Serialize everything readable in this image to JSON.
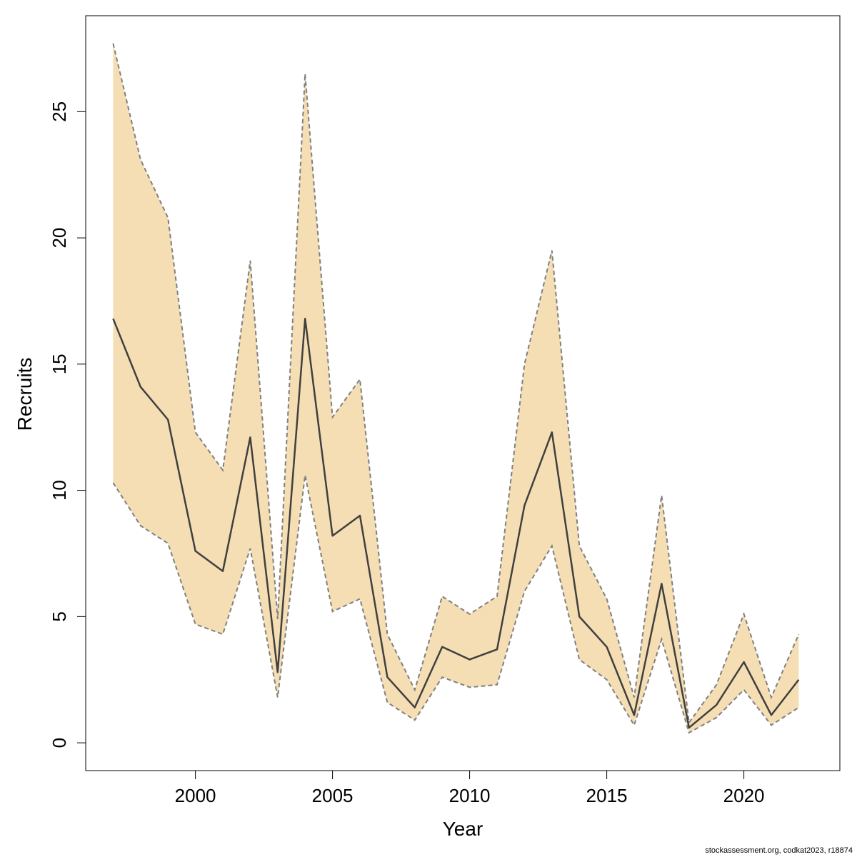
{
  "footer": "stockassessment.org, codkat2023, r18874",
  "chart_data": {
    "type": "line",
    "title": "",
    "xlabel": "Year",
    "ylabel": "Recruits",
    "xlim": [
      1996,
      2023.5
    ],
    "ylim": [
      -1.1,
      28.8
    ],
    "xticks": [
      2000,
      2005,
      2010,
      2015,
      2020
    ],
    "yticks": [
      0,
      5,
      10,
      15,
      20,
      25
    ],
    "grid": false,
    "legend": "none",
    "colors": {
      "band_fill": "#F5DEB3",
      "band_edge": "#808080",
      "line": "#404040",
      "axis": "#000000"
    },
    "x": [
      1997,
      1998,
      1999,
      2000,
      2001,
      2002,
      2003,
      2004,
      2005,
      2006,
      2007,
      2008,
      2009,
      2010,
      2011,
      2012,
      2013,
      2014,
      2015,
      2016,
      2017,
      2018,
      2019,
      2020,
      2021,
      2022
    ],
    "series": [
      {
        "role": "estimate",
        "values": [
          16.8,
          14.1,
          12.8,
          7.6,
          6.8,
          12.1,
          2.8,
          16.8,
          8.2,
          9.0,
          2.6,
          1.4,
          3.8,
          3.3,
          3.7,
          9.4,
          12.3,
          5.0,
          3.8,
          1.1,
          6.3,
          0.6,
          1.5,
          3.2,
          1.1,
          2.5
        ]
      },
      {
        "role": "upper",
        "values": [
          27.7,
          23.1,
          20.8,
          12.3,
          10.8,
          19.1,
          4.9,
          26.5,
          12.9,
          14.4,
          4.3,
          2.1,
          5.8,
          5.1,
          5.8,
          15.0,
          19.5,
          7.8,
          5.7,
          1.8,
          9.8,
          0.8,
          2.3,
          5.1,
          1.8,
          4.3
        ]
      },
      {
        "role": "lower",
        "values": [
          10.3,
          8.6,
          7.9,
          4.7,
          4.3,
          7.7,
          1.8,
          10.6,
          5.2,
          5.7,
          1.6,
          0.9,
          2.6,
          2.2,
          2.3,
          6.0,
          7.8,
          3.3,
          2.5,
          0.7,
          4.1,
          0.4,
          1.0,
          2.1,
          0.7,
          1.4
        ]
      }
    ]
  }
}
